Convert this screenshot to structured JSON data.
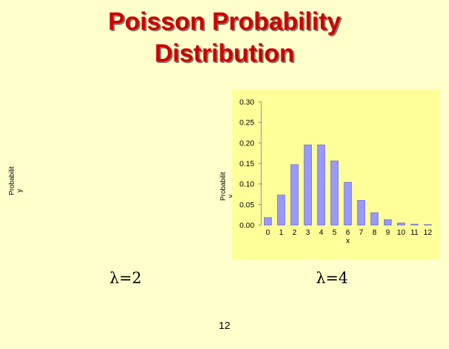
{
  "title_line1": "Poisson Probability",
  "title_line2": "Distribution",
  "left_chart": {
    "ylabel_line1": "Probabilit",
    "ylabel_line2": "y",
    "lambda_label": "λ=2"
  },
  "page_number": "12",
  "chart_data": {
    "type": "bar",
    "xlabel": "x",
    "ylabel": "Probability",
    "ylabel_line1": "Probabilit",
    "ylabel_line2": "y",
    "lambda_label": "λ=4",
    "categories": [
      "0",
      "1",
      "2",
      "3",
      "4",
      "5",
      "6",
      "7",
      "8",
      "9",
      "10",
      "11",
      "12"
    ],
    "values": [
      0.018,
      0.073,
      0.147,
      0.195,
      0.195,
      0.156,
      0.104,
      0.06,
      0.03,
      0.013,
      0.005,
      0.002,
      0.001
    ],
    "ylim": [
      0,
      0.3
    ],
    "yticks": [
      "0.00",
      "0.05",
      "0.10",
      "0.15",
      "0.20",
      "0.25",
      "0.30"
    ],
    "bar_color": "#9999ff",
    "bar_edge_color": "#6666cc",
    "plot_bg": "#ffff99",
    "grid": false
  }
}
